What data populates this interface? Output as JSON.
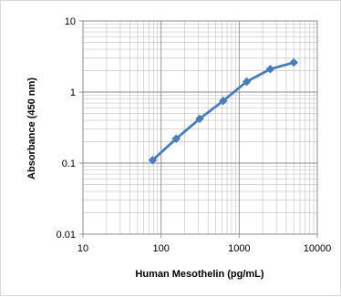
{
  "chart_data": {
    "type": "line",
    "title": "",
    "xlabel": "Human Mesothelin (pg/mL)",
    "ylabel": "Absorbance (450 nm)",
    "x_scale": "log",
    "y_scale": "log",
    "xlim": [
      10,
      10000
    ],
    "ylim": [
      0.01,
      10
    ],
    "x_ticks": [
      "10",
      "100",
      "1000",
      "10000"
    ],
    "y_ticks": [
      "0.01",
      "0.1",
      "1",
      "10"
    ],
    "grid": true,
    "legend": "none",
    "series": [
      {
        "x": [
          78,
          156,
          312,
          625,
          1250,
          2500,
          5000
        ],
        "y": [
          0.11,
          0.22,
          0.42,
          0.75,
          1.4,
          2.1,
          2.6
        ],
        "color": "#4a7ebb",
        "marker": "diamond"
      }
    ]
  }
}
